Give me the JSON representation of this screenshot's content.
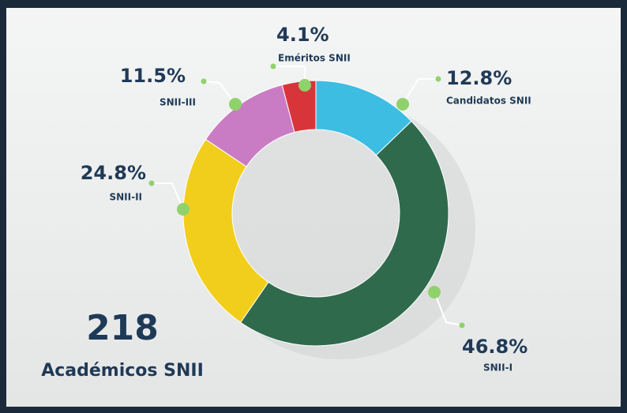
{
  "chart_data": {
    "type": "donut",
    "categories": [
      "Candidatos SNII",
      "SNII-I",
      "SNII-II",
      "SNII-III",
      "Eméritos SNII"
    ],
    "values": [
      12.8,
      46.8,
      24.8,
      11.5,
      4.1
    ],
    "value_labels": [
      "12.8%",
      "46.8%",
      "24.8%",
      "11.5%",
      "4.1%"
    ],
    "colors": [
      "#3dbde2",
      "#2f6a4c",
      "#f2ce1c",
      "#c97cc3",
      "#d8353b"
    ],
    "total": 218,
    "total_label": "Académicos SNII"
  }
}
